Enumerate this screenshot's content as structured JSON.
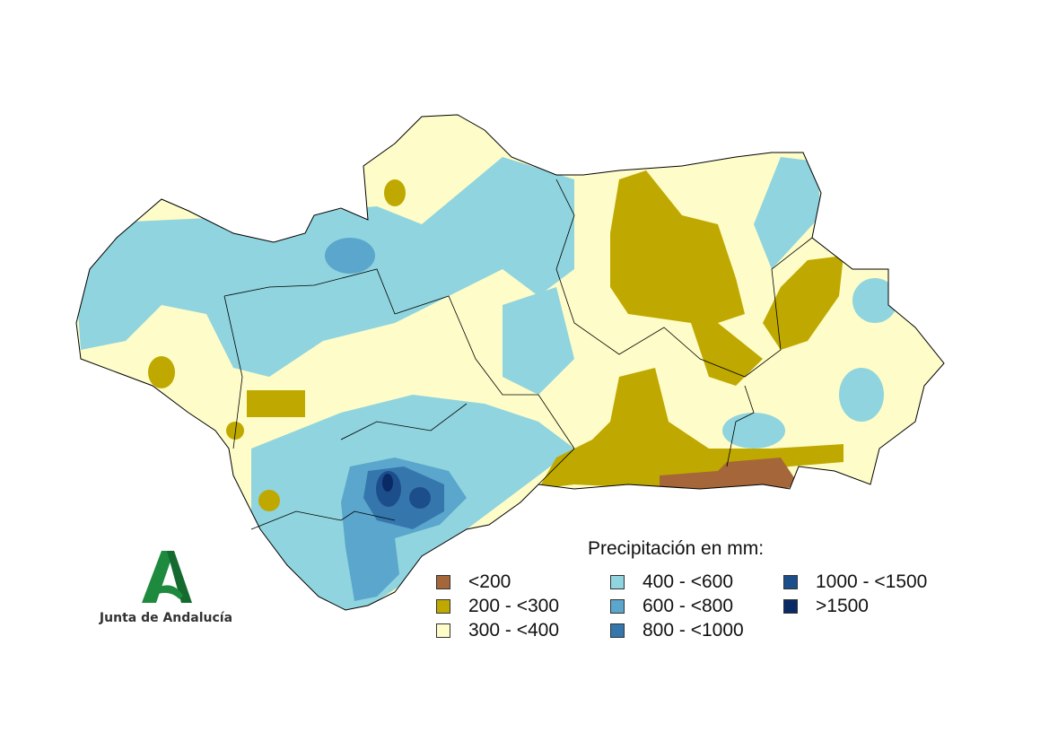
{
  "legend": {
    "title": "Precipitación en mm:",
    "items": [
      {
        "label": "<200",
        "color": "#a5663a"
      },
      {
        "label": "200 - <300",
        "color": "#bfa900"
      },
      {
        "label": "300 - <400",
        "color": "#fefcc8"
      },
      {
        "label": "400 - <600",
        "color": "#8fd4de"
      },
      {
        "label": "600 - <800",
        "color": "#5aa6cc"
      },
      {
        "label": "800 - <1000",
        "color": "#3577ad"
      },
      {
        "label": "1000 - <1500",
        "color": "#1d4e8c"
      },
      {
        "label": ">1500",
        "color": "#0a2a66"
      }
    ]
  },
  "logo": {
    "text": "Junta de Andalucía",
    "color": "#1e8a3e"
  }
}
